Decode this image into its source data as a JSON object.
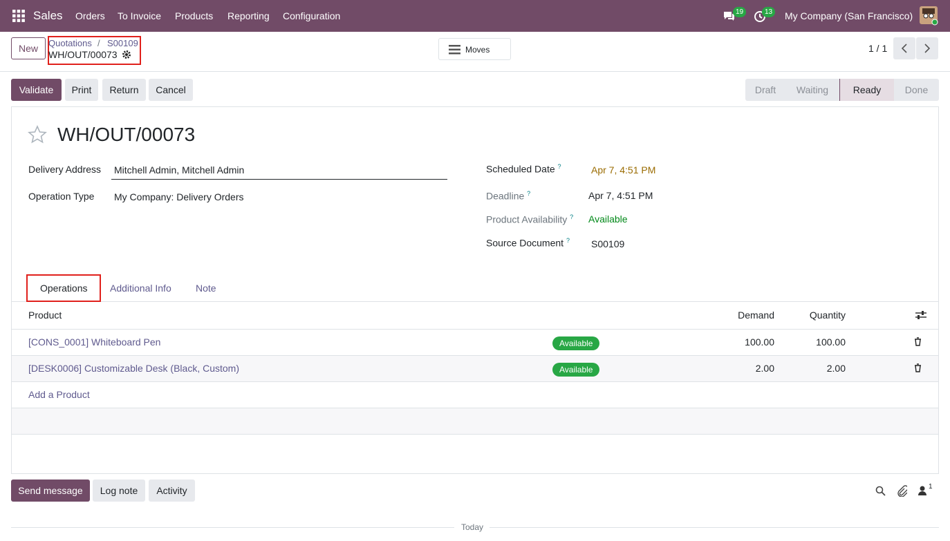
{
  "navbar": {
    "app": "Sales",
    "menu": [
      "Orders",
      "To Invoice",
      "Products",
      "Reporting",
      "Configuration"
    ],
    "messages_badge": "19",
    "activities_badge": "13",
    "company": "My Company (San Francisco)"
  },
  "control_panel": {
    "new": "New",
    "breadcrumb": [
      "Quotations",
      "S00109"
    ],
    "breadcrumb_separator": "/",
    "record": "WH/OUT/00073",
    "moves": "Moves",
    "pager": "1 / 1"
  },
  "actions": [
    "Validate",
    "Print",
    "Return",
    "Cancel"
  ],
  "statusbar": [
    {
      "label": "Draft",
      "active": false
    },
    {
      "label": "Waiting",
      "active": false
    },
    {
      "label": "Ready",
      "active": true
    },
    {
      "label": "Done",
      "active": false
    }
  ],
  "form": {
    "title": "WH/OUT/00073",
    "left": [
      {
        "label": "Delivery Address",
        "value": "Mitchell Admin, Mitchell Admin"
      },
      {
        "label": "Operation Type",
        "value": "My Company: Delivery Orders"
      }
    ],
    "right": [
      {
        "label": "Scheduled Date",
        "help": "?",
        "value": "Apr 7, 4:51 PM"
      },
      {
        "label": "Deadline",
        "help": "?",
        "value": "Apr 7, 4:51 PM"
      },
      {
        "label": "Product Availability",
        "help": "?",
        "value": "Available"
      },
      {
        "label": "Source Document",
        "help": "?",
        "value": "S00109"
      }
    ]
  },
  "tabs": [
    "Operations",
    "Additional Info",
    "Note"
  ],
  "table": {
    "headers": [
      "Product",
      "Demand",
      "Quantity"
    ],
    "rows": [
      [
        "[CONS_0001] Whiteboard Pen",
        "Available",
        "100.00",
        "100.00"
      ],
      [
        "[DESK0006] Customizable Desk (Black, Custom)",
        "Available",
        "2.00",
        "2.00"
      ]
    ],
    "add": "Add a Product"
  },
  "chatter": {
    "buttons": [
      "Send message",
      "Log note",
      "Activity"
    ],
    "followers": "1",
    "separator": "Today"
  }
}
